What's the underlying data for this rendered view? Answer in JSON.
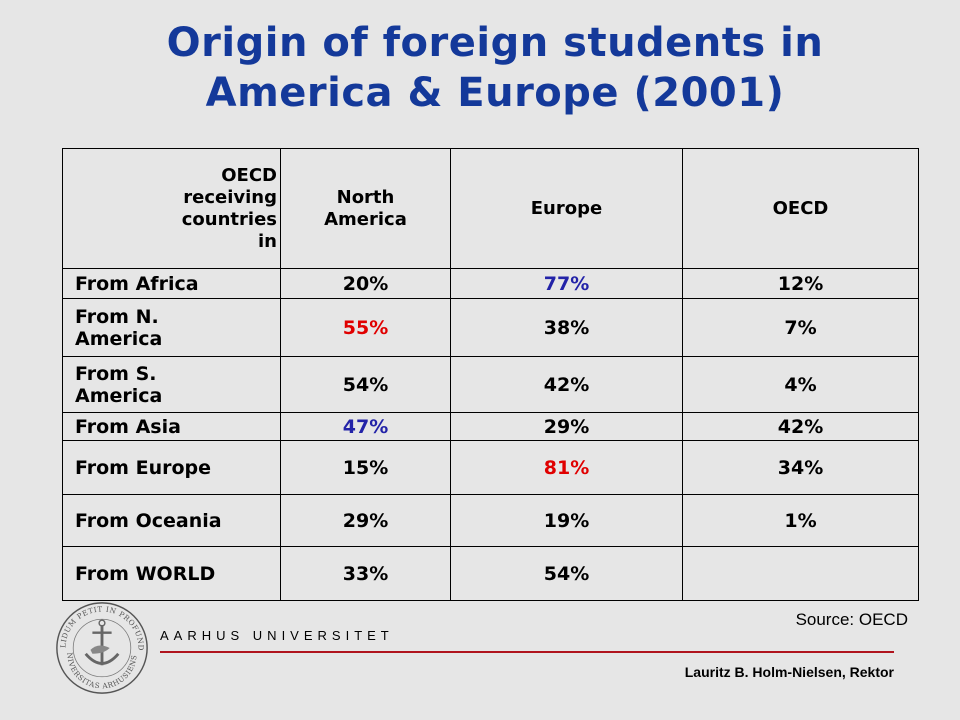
{
  "title_line1": "Origin of foreign students in",
  "title_line2": "America & Europe (2001)",
  "table": {
    "header": {
      "rowhead": [
        "OECD",
        "receiving",
        "countries",
        "in"
      ],
      "col1": [
        "North",
        "America"
      ],
      "col2": "Europe",
      "col3": "OECD"
    },
    "rows": [
      {
        "label": [
          "From Africa"
        ],
        "values": [
          "20%",
          "77%",
          "12%"
        ],
        "colors": [
          "black",
          "blue",
          "black"
        ],
        "h": 30
      },
      {
        "label": [
          "From N.",
          "America"
        ],
        "values": [
          "55%",
          "38%",
          "7%"
        ],
        "colors": [
          "red",
          "black",
          "black"
        ],
        "h": 58
      },
      {
        "label": [
          "From S.",
          "America"
        ],
        "values": [
          "54%",
          "42%",
          "4%"
        ],
        "colors": [
          "black",
          "black",
          "black"
        ],
        "h": 56
      },
      {
        "label": [
          "From Asia"
        ],
        "values": [
          "47%",
          "29%",
          "42%"
        ],
        "colors": [
          "blue",
          "black",
          "black"
        ],
        "h": 28
      },
      {
        "label": [
          "From Europe"
        ],
        "values": [
          "15%",
          "81%",
          "34%"
        ],
        "colors": [
          "black",
          "red",
          "black"
        ],
        "h": 54
      },
      {
        "label": [
          "From Oceania"
        ],
        "values": [
          "29%",
          "19%",
          "1%"
        ],
        "colors": [
          "black",
          "black",
          "black"
        ],
        "h": 52
      },
      {
        "label": [
          "From WORLD"
        ],
        "values": [
          "33%",
          "54%",
          ""
        ],
        "colors": [
          "black",
          "black",
          "black"
        ],
        "h": 54
      }
    ]
  },
  "source": "Source: OECD",
  "university": "AARHUS UNIVERSITET",
  "presenter": "Lauritz B. Holm-Nielsen, Rektor",
  "seal_text_top": "SOLIDUM PETIT IN PROFUNDIS",
  "seal_text_bottom": "UNIVERSITAS ARHUSIENSIS",
  "colors": {
    "title": "#14399a",
    "blue": "#2323a8",
    "red": "#e00000",
    "rule": "#b0141e",
    "background": "#e6e6e6"
  }
}
